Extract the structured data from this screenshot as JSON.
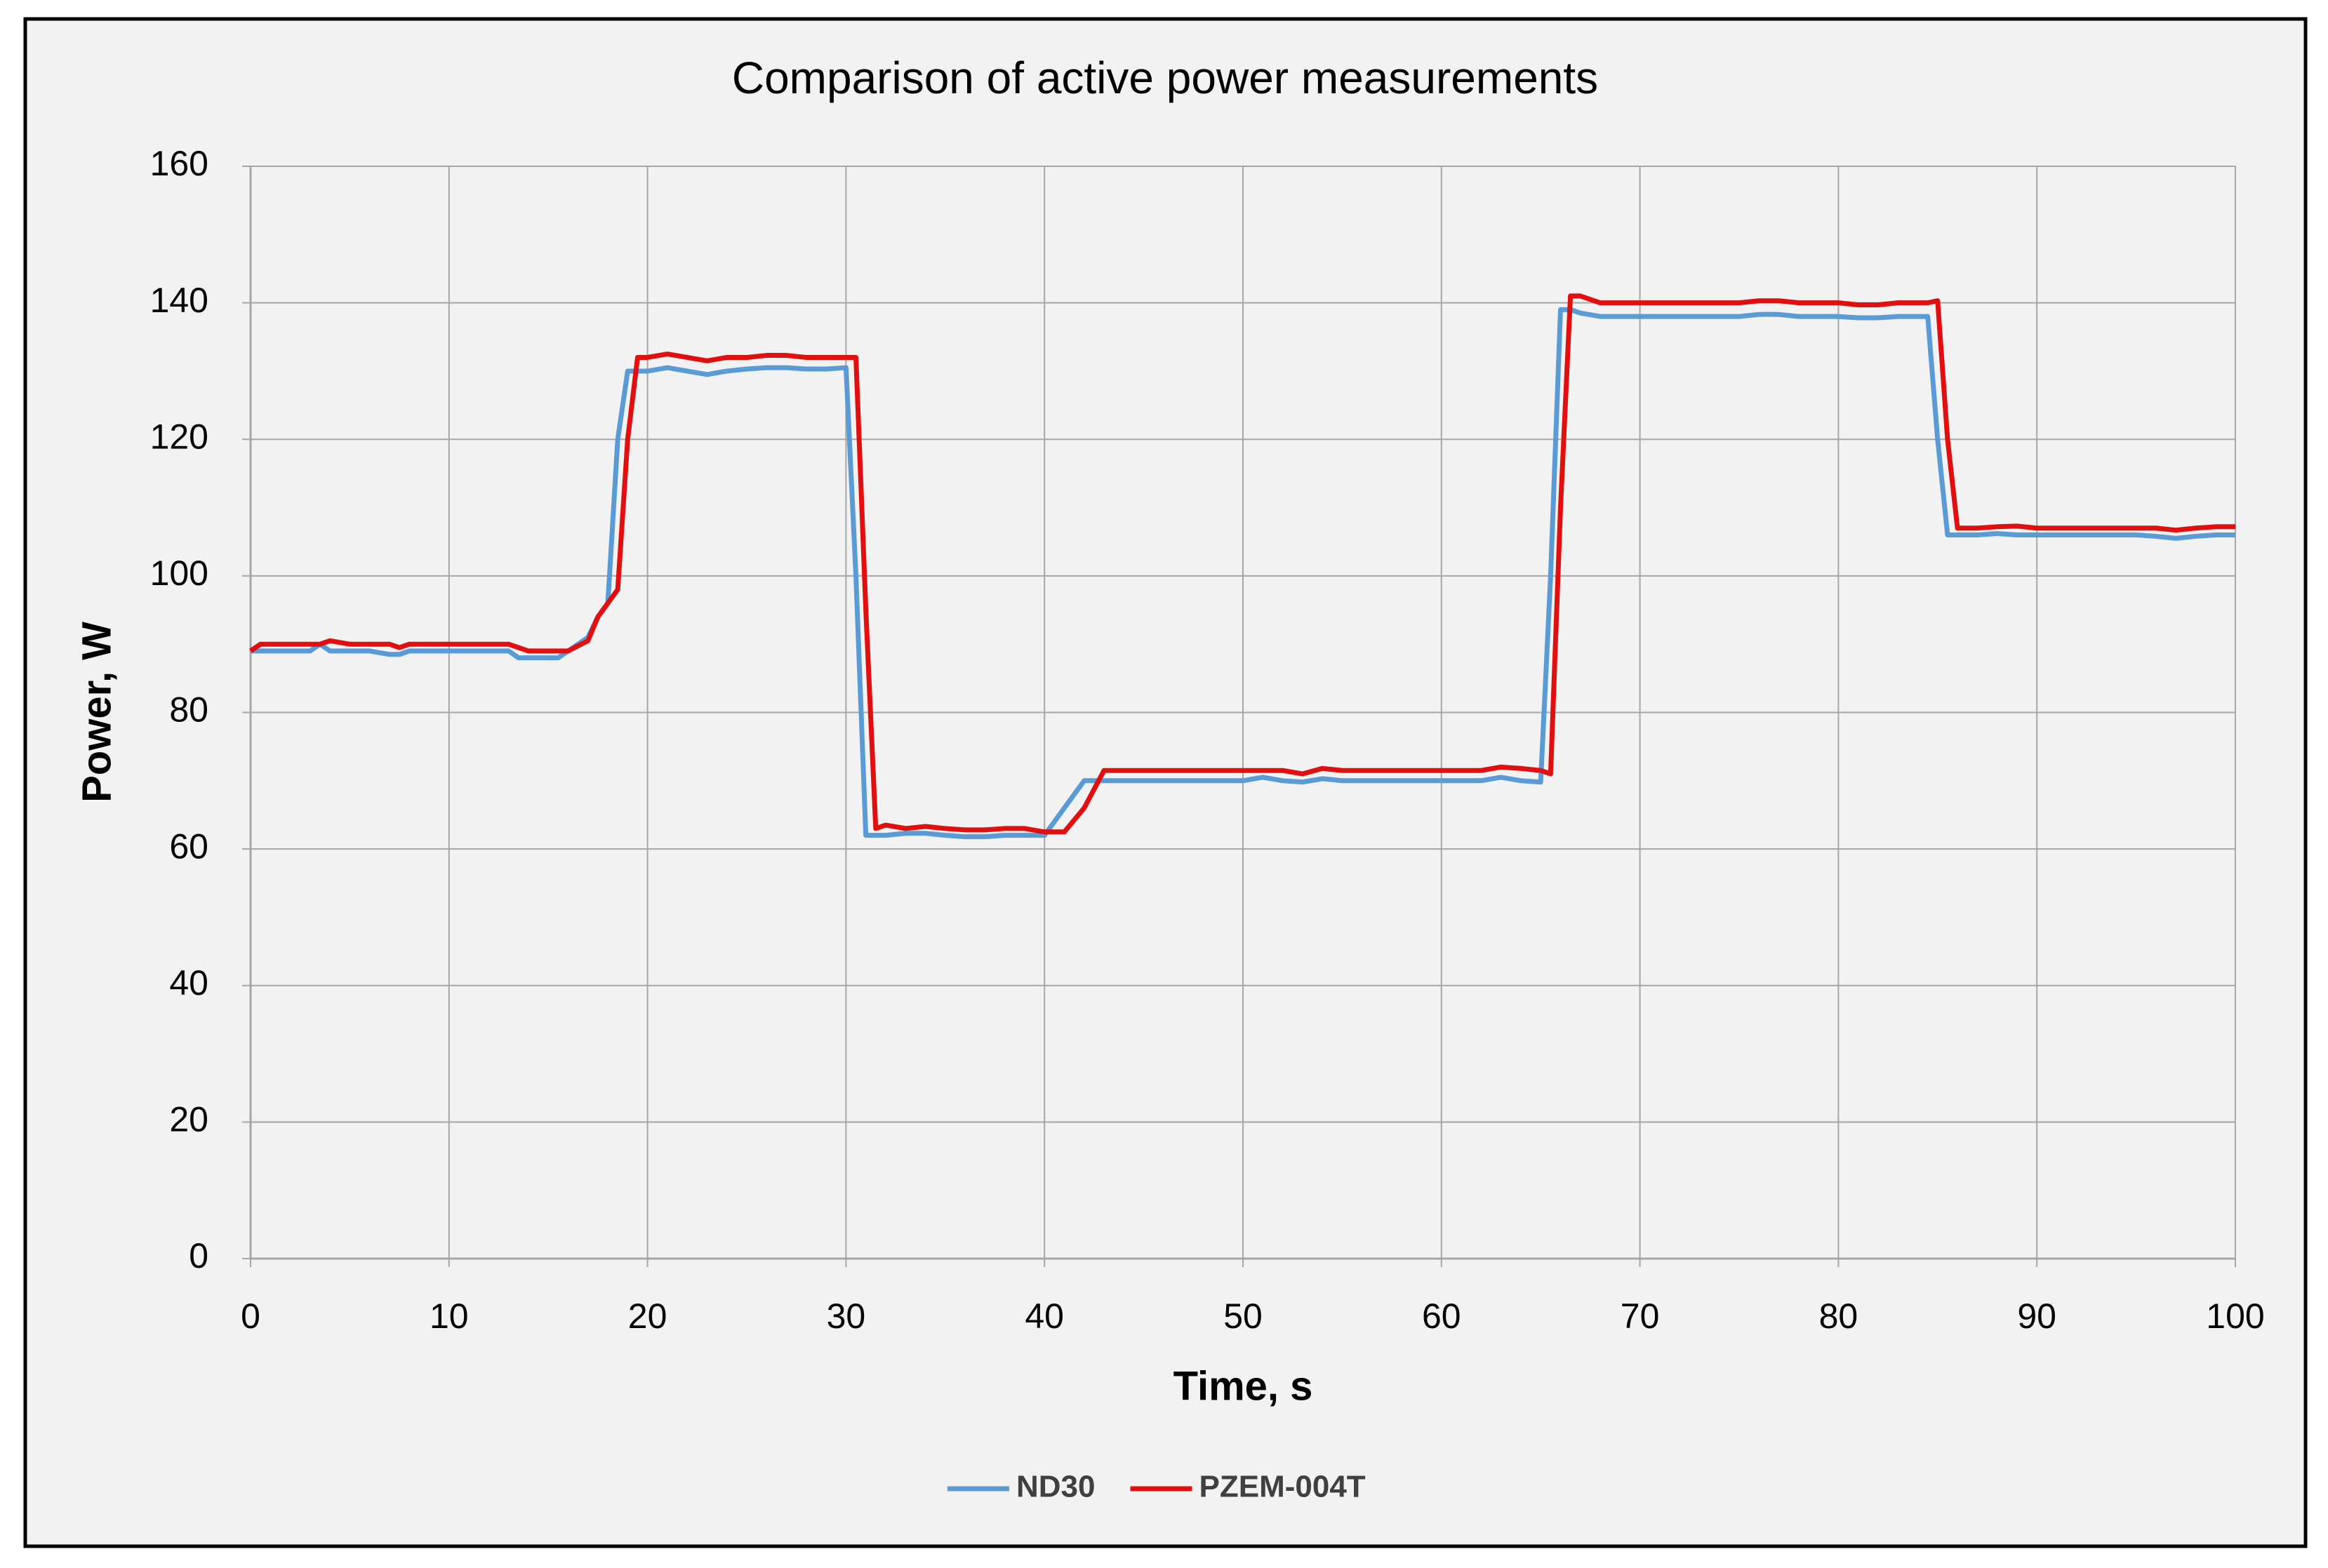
{
  "chart_data": {
    "type": "line",
    "title": "Comparison of active power measurements",
    "x_label": "Time, s",
    "y_label": "Power, W",
    "x": [
      0,
      0.5,
      1,
      2,
      3,
      3.5,
      4,
      5,
      6,
      7,
      7.5,
      8,
      9,
      10,
      11,
      12,
      13,
      13.5,
      14,
      15,
      15.5,
      16,
      17,
      17.5,
      18,
      18.5,
      19,
      19.5,
      20,
      21,
      22,
      23,
      24,
      25,
      26,
      27,
      28,
      29,
      30,
      30.5,
      31,
      31.5,
      32,
      33,
      34,
      35,
      36,
      37,
      38,
      39,
      40,
      41,
      42,
      43,
      44,
      45,
      46,
      47,
      48,
      49,
      50,
      51,
      52,
      53,
      54,
      55,
      56,
      57,
      58,
      59,
      60,
      61,
      62,
      63,
      64,
      65,
      65.5,
      66,
      66.5,
      67,
      68,
      69,
      70,
      71,
      72,
      73,
      74,
      75,
      76,
      77,
      78,
      79,
      80,
      81,
      82,
      83,
      84,
      84.5,
      85,
      85.5,
      86,
      87,
      88,
      89,
      90,
      91,
      92,
      93,
      94,
      95,
      96,
      97,
      98,
      99,
      100
    ],
    "series": [
      {
        "name": "ND30",
        "color": "#5b9bd5",
        "values": [
          89,
          89,
          89,
          89,
          89,
          90,
          89,
          89,
          89,
          88.5,
          88.5,
          89,
          89,
          89,
          89,
          89,
          89,
          88,
          88,
          88,
          88,
          89,
          91,
          94,
          96,
          120,
          130,
          130,
          130,
          130.5,
          130,
          129.5,
          130,
          130.3,
          130.5,
          130.5,
          130.3,
          130.3,
          130.5,
          100,
          62,
          62,
          62,
          62.3,
          62.3,
          62,
          61.8,
          61.8,
          62,
          62,
          62,
          66,
          70,
          70,
          70,
          70,
          70,
          70,
          70,
          70,
          70,
          70.5,
          70,
          69.8,
          70.3,
          70,
          70,
          70,
          70,
          70,
          70,
          70,
          70,
          70.5,
          70,
          69.8,
          100,
          139,
          139,
          138.5,
          138,
          138,
          138,
          138,
          138,
          138,
          138,
          138,
          138.3,
          138.3,
          138,
          138,
          138,
          137.8,
          137.8,
          138,
          138,
          138,
          120,
          106,
          106,
          106,
          106.2,
          106,
          106,
          106,
          106,
          106,
          106,
          106,
          105.8,
          105.5,
          105.8,
          106,
          106
        ]
      },
      {
        "name": "PZEM-004T",
        "color": "#e01010",
        "values": [
          89,
          90,
          90,
          90,
          90,
          90,
          90.5,
          90,
          90,
          90,
          89.5,
          90,
          90,
          90,
          90,
          90,
          90,
          89.5,
          89,
          89,
          89,
          89,
          90.5,
          94,
          96,
          98,
          120,
          132,
          132,
          132.5,
          132,
          131.5,
          132,
          132,
          132.3,
          132.3,
          132,
          132,
          132,
          132,
          95,
          63,
          63.5,
          63,
          63.3,
          63,
          62.8,
          62.8,
          63,
          63,
          62.5,
          62.5,
          66,
          71.5,
          71.5,
          71.5,
          71.5,
          71.5,
          71.5,
          71.5,
          71.5,
          71.5,
          71.5,
          71,
          71.8,
          71.5,
          71.5,
          71.5,
          71.5,
          71.5,
          71.5,
          71.5,
          71.5,
          72,
          71.8,
          71.5,
          71,
          110,
          141,
          141,
          140,
          140,
          140,
          140,
          140,
          140,
          140,
          140,
          140.3,
          140.3,
          140,
          140,
          140,
          139.7,
          139.7,
          140,
          140,
          140,
          140.3,
          120,
          107,
          107,
          107.2,
          107.3,
          107,
          107,
          107,
          107,
          107,
          107,
          107,
          106.7,
          107,
          107.2,
          107.2
        ]
      }
    ],
    "xlim": [
      0,
      100
    ],
    "xticks": [
      0,
      10,
      20,
      30,
      40,
      50,
      60,
      70,
      80,
      90,
      100
    ],
    "ylim": [
      0,
      160
    ],
    "yticks": [
      0,
      20,
      40,
      60,
      80,
      100,
      120,
      140,
      160
    ],
    "grid": true,
    "legend": "bottom"
  }
}
